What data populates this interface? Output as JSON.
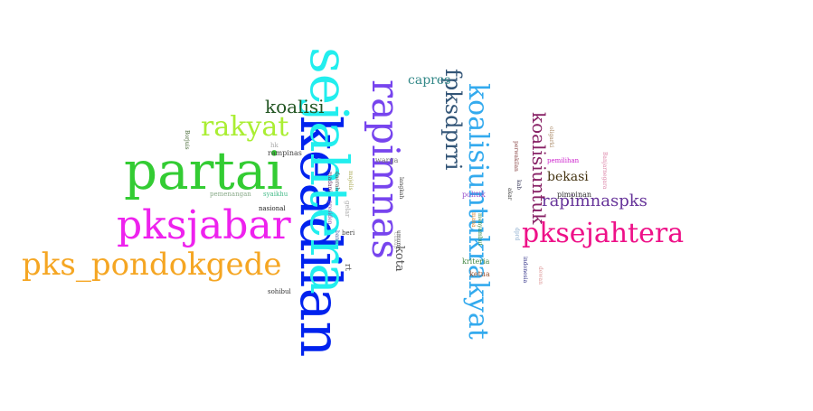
{
  "words": [
    {
      "text": "keadilan",
      "color": "#0022ee"
    },
    {
      "text": "sejahtera",
      "color": "#22eeee"
    },
    {
      "text": "partai",
      "color": "#33cc33"
    },
    {
      "text": "rapimnas",
      "color": "#7744ee"
    },
    {
      "text": "pksjabar",
      "color": "#ee22ee"
    },
    {
      "text": "koalisiuntukrakyat",
      "color": "#33aaee"
    },
    {
      "text": "pks_pondokgede",
      "color": "#f5a623"
    },
    {
      "text": "pksejahtera",
      "color": "#ee1188"
    },
    {
      "text": "fpksdprri",
      "color": "#335577"
    },
    {
      "text": "rakyat",
      "color": "#aaee33"
    },
    {
      "text": "koalisiuntuk",
      "color": "#882266"
    },
    {
      "text": "rapimnaspks",
      "color": "#663399"
    },
    {
      "text": "koalisi",
      "color": "#225522"
    },
    {
      "text": "capres",
      "color": "#338888"
    },
    {
      "text": "bekasi",
      "color": "#443311"
    },
    {
      "text": "kota",
      "color": "#555555"
    },
    {
      "text": "pimpinan",
      "color": "#333333"
    },
    {
      "text": "politik",
      "color": "#9955cc"
    },
    {
      "text": "kriteria",
      "color": "#448844"
    },
    {
      "text": "ketua",
      "color": "#995533"
    },
    {
      "text": "rampinas",
      "color": "#444444"
    },
    {
      "text": "warga",
      "color": "#777777"
    },
    {
      "text": "nasional",
      "color": "#222222"
    },
    {
      "text": "pemenangan",
      "color": "#88aa88"
    },
    {
      "text": "syaikhu",
      "color": "#44bb88"
    },
    {
      "text": "sohibul",
      "color": "#333333"
    },
    {
      "text": "pemilihan",
      "color": "#cc22cc"
    },
    {
      "text": "hk",
      "color": "#aaaaaa"
    },
    {
      "text": "beri",
      "color": "#444444"
    },
    {
      "text": "rt",
      "color": "#555555"
    },
    {
      "text": "gelar",
      "color": "#aaaaaa"
    },
    {
      "text": "umum",
      "color": "#333333"
    },
    {
      "text": "indonesia",
      "color": "#333388"
    },
    {
      "text": "menyambut",
      "color": "#338844"
    },
    {
      "text": "langkah",
      "color": "#444444"
    },
    {
      "text": "bang",
      "color": "#4466aa"
    },
    {
      "text": "daerah",
      "color": "#555555"
    },
    {
      "text": "oligarki",
      "color": "#aa8866"
    },
    {
      "text": "perwakilan",
      "color": "#884444"
    },
    {
      "text": "kab",
      "color": "#333355"
    },
    {
      "text": "akar",
      "color": "#444444"
    },
    {
      "text": "Banjarnegara",
      "color": "#dd88aa"
    },
    {
      "text": "dewan",
      "color": "#dd9999"
    },
    {
      "text": "Borjuis",
      "color": "#446633"
    },
    {
      "text": "madani",
      "color": "#663366"
    },
    {
      "text": "majelis",
      "color": "#aaaa55"
    },
    {
      "text": "presiden",
      "color": "#8855aa"
    },
    {
      "text": "cukup",
      "color": "#aaaaaa"
    },
    {
      "text": "dprd",
      "color": "#88aacc"
    },
    {
      "text": "mana",
      "color": "#dd8833"
    }
  ]
}
